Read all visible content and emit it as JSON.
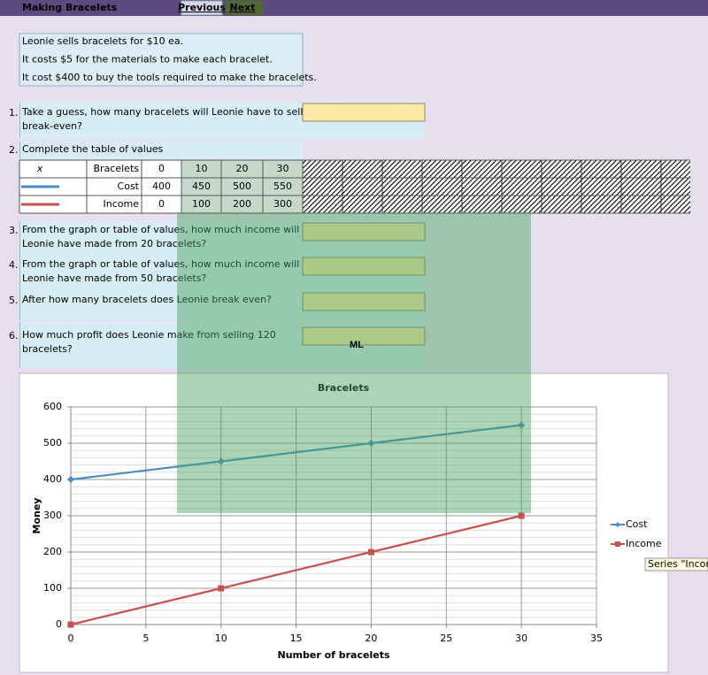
{
  "header": {
    "title": "Making Bracelets",
    "links": [
      "Previous",
      "Next"
    ]
  },
  "info": [
    "Leonie sells bracelets for $10 ea.",
    "It costs $5 for the materials to make each bracelet.",
    "It cost $400 to buy the tools required to make the bracelets."
  ],
  "questions": [
    {
      "number": "1.",
      "text": [
        "Take a guess, how many bracelets will Leonie have to sell to",
        "break-even?"
      ]
    },
    {
      "number": "2.",
      "text": [
        "Complete the table of values"
      ]
    },
    {
      "number": "3.",
      "text": [
        "From the graph or table of values, how much income will",
        "Leonie have made from 20 bracelets?"
      ]
    },
    {
      "number": "4.",
      "text": [
        "From the graph or table of values, how much income will",
        "Leonie have made from 50 bracelets?"
      ]
    },
    {
      "number": "5.",
      "text": [
        "After how many bracelets does Leonie break even?"
      ]
    },
    {
      "number": "6.",
      "text": [
        "How much profit does Leonie make from selling 120",
        "bracelets?"
      ]
    }
  ],
  "table": {
    "x_label": "x",
    "rows": [
      [
        "Bracelets",
        0,
        10,
        20,
        30
      ],
      [
        "Cost",
        400,
        450,
        500,
        550
      ],
      [
        "Income",
        0,
        100,
        200,
        300
      ]
    ]
  },
  "watermark": "ML",
  "tooltip": "Series \"Income\" Lege",
  "chart_data": {
    "type": "line",
    "title": "Bracelets",
    "x_label": "Number of bracelets",
    "y_label": "Money",
    "x": [
      0,
      10,
      20,
      30
    ],
    "series": [
      {
        "name": "Cost",
        "color": "#4a8dc2",
        "marker": "diamond",
        "values": [
          400,
          450,
          500,
          550
        ]
      },
      {
        "name": "Income",
        "color": "#c9504c",
        "marker": "square",
        "values": [
          0,
          100,
          200,
          300
        ]
      }
    ],
    "xlim": [
      0,
      35
    ],
    "xticks": [
      0,
      5,
      10,
      15,
      20,
      25,
      30,
      35
    ],
    "ylim": [
      0,
      600
    ],
    "yticks": [
      0,
      100,
      200,
      300,
      400,
      500,
      600
    ],
    "grid": true,
    "y_minor_grid": 20,
    "legend": "right"
  }
}
